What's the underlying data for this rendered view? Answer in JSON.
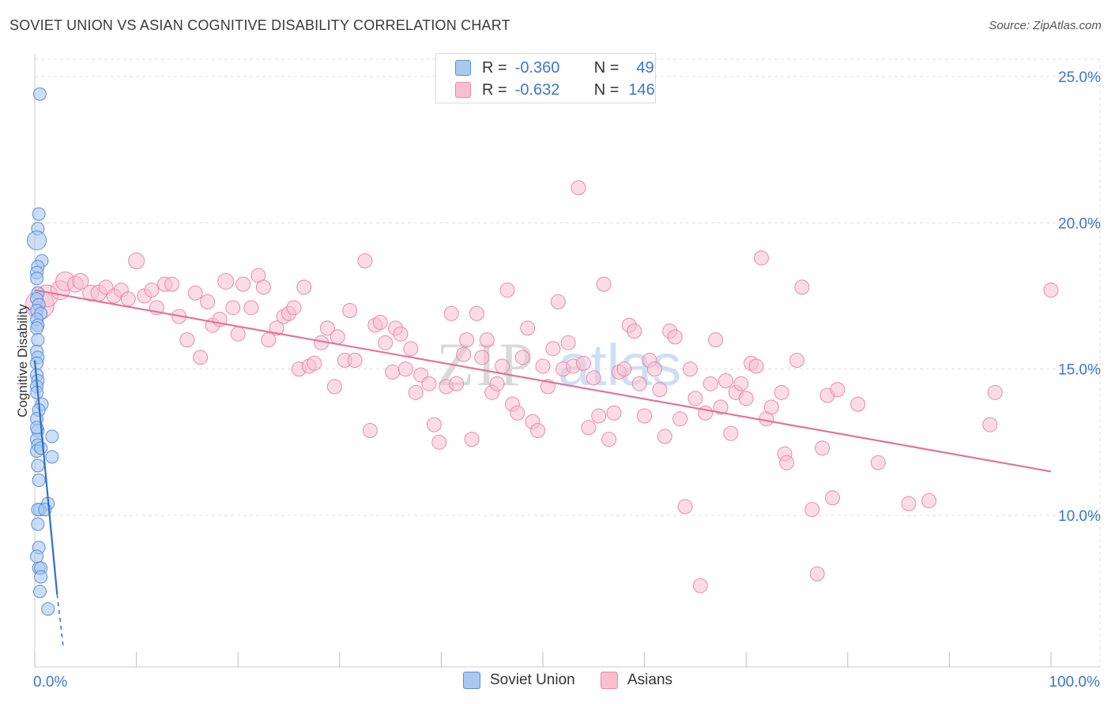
{
  "header": {
    "title": "SOVIET UNION VS ASIAN COGNITIVE DISABILITY CORRELATION CHART",
    "source": "Source: ZipAtlas.com"
  },
  "legend": {
    "r_label": "R =",
    "n_label": "N =",
    "soviet": {
      "r": "-0.360",
      "n": "49"
    },
    "asians": {
      "r": "-0.632",
      "n": "146"
    }
  },
  "watermark": {
    "zip": "ZIP",
    "atlas": "atlas"
  },
  "colors": {
    "soviet_fill": "#a9c8f0",
    "soviet_stroke": "#5a90d6",
    "soviet_line": "#2f6fd0",
    "asians_fill": "#f8bfd1",
    "asians_stroke": "#e88aa8",
    "asians_line": "#e3739a",
    "axis_label": "#3a78c9",
    "grid": "#dddddd"
  },
  "chart_data": {
    "type": "scatter",
    "title": "SOVIET UNION VS ASIAN COGNITIVE DISABILITY CORRELATION CHART",
    "ylabel": "Cognitive Disability",
    "xlabel": "",
    "xlim": [
      0,
      100
    ],
    "ylim": [
      5.5,
      26.3
    ],
    "x_tick_labels": [
      {
        "value": 0,
        "label": "0.0%"
      },
      {
        "value": 100,
        "label": "100.0%"
      }
    ],
    "y_tick_labels": [
      {
        "value": 10,
        "label": "10.0%"
      },
      {
        "value": 15,
        "label": "15.0%"
      },
      {
        "value": 20,
        "label": "20.0%"
      },
      {
        "value": 25,
        "label": "25.0%"
      }
    ],
    "grid": "horizontal dashed",
    "legend_position": "top-center",
    "series": [
      {
        "name": "Soviet Union",
        "r": -0.36,
        "n": 49,
        "trend": {
          "x0": 0,
          "y0": 15.3,
          "x1": 2.2,
          "y1": 7.3,
          "dash_to_x": 2.8,
          "dash_to_y": 5.5
        },
        "points": [
          [
            0.5,
            24.4,
            8
          ],
          [
            0.4,
            20.3,
            8
          ],
          [
            0.3,
            19.8,
            8
          ],
          [
            0.2,
            19.4,
            12
          ],
          [
            0.7,
            18.7,
            8
          ],
          [
            0.3,
            18.5,
            8
          ],
          [
            0.2,
            18.3,
            8
          ],
          [
            0.2,
            18.1,
            8
          ],
          [
            0.3,
            17.6,
            8
          ],
          [
            0.2,
            17.4,
            8
          ],
          [
            0.4,
            17.2,
            8
          ],
          [
            0.2,
            17.0,
            8
          ],
          [
            0.6,
            16.9,
            8
          ],
          [
            0.2,
            16.7,
            8
          ],
          [
            0.3,
            16.5,
            8
          ],
          [
            0.2,
            16.4,
            8
          ],
          [
            0.3,
            16.0,
            8
          ],
          [
            0.2,
            15.6,
            8
          ],
          [
            0.3,
            15.4,
            8
          ],
          [
            0.2,
            15.2,
            8
          ],
          [
            0.2,
            14.8,
            8
          ],
          [
            0.3,
            14.6,
            8
          ],
          [
            0.2,
            14.4,
            8
          ],
          [
            0.2,
            14.2,
            8
          ],
          [
            0.7,
            13.8,
            8
          ],
          [
            0.4,
            13.6,
            8
          ],
          [
            0.2,
            13.3,
            8
          ],
          [
            0.3,
            12.9,
            8
          ],
          [
            0.2,
            12.6,
            8
          ],
          [
            1.7,
            12.7,
            8
          ],
          [
            0.3,
            12.4,
            8
          ],
          [
            0.2,
            12.2,
            8
          ],
          [
            0.6,
            12.3,
            8
          ],
          [
            1.7,
            12.0,
            8
          ],
          [
            0.4,
            11.2,
            8
          ],
          [
            1.3,
            10.4,
            8
          ],
          [
            0.5,
            10.2,
            8
          ],
          [
            0.3,
            10.2,
            8
          ],
          [
            1.0,
            10.2,
            8
          ],
          [
            0.3,
            9.7,
            8
          ],
          [
            0.4,
            8.9,
            8
          ],
          [
            0.4,
            8.2,
            8
          ],
          [
            0.6,
            8.2,
            8
          ],
          [
            0.6,
            7.9,
            8
          ],
          [
            0.5,
            7.4,
            8
          ],
          [
            1.3,
            6.8,
            8
          ],
          [
            0.2,
            8.6,
            8
          ],
          [
            0.3,
            11.7,
            8
          ],
          [
            0.2,
            13.0,
            8
          ]
        ]
      },
      {
        "name": "Asians",
        "r": -0.632,
        "n": 146,
        "trend": {
          "x0": 0,
          "y0": 17.7,
          "x1": 100,
          "y1": 11.5
        },
        "points": [
          [
            0.5,
            17.2,
            18
          ],
          [
            1.2,
            17.5,
            14
          ],
          [
            2.5,
            17.7,
            12
          ],
          [
            3.0,
            18.0,
            12
          ],
          [
            4.0,
            17.9,
            10
          ],
          [
            4.5,
            18.0,
            10
          ],
          [
            5.5,
            17.6,
            10
          ],
          [
            6.3,
            17.6,
            10
          ],
          [
            7.0,
            17.8,
            9
          ],
          [
            7.8,
            17.5,
            9
          ],
          [
            8.5,
            17.7,
            9
          ],
          [
            9.2,
            17.4,
            9
          ],
          [
            10.0,
            18.7,
            10
          ],
          [
            10.8,
            17.5,
            9
          ],
          [
            11.5,
            17.7,
            9
          ],
          [
            12.0,
            17.1,
            9
          ],
          [
            12.8,
            17.9,
            9
          ],
          [
            13.5,
            17.9,
            9
          ],
          [
            14.2,
            16.8,
            9
          ],
          [
            15.0,
            16.0,
            9
          ],
          [
            15.8,
            17.6,
            9
          ],
          [
            16.3,
            15.4,
            9
          ],
          [
            17.0,
            17.3,
            9
          ],
          [
            17.5,
            16.5,
            9
          ],
          [
            18.2,
            16.7,
            9
          ],
          [
            18.8,
            18.0,
            10
          ],
          [
            19.5,
            17.1,
            9
          ],
          [
            20.0,
            16.2,
            9
          ],
          [
            20.5,
            17.9,
            9
          ],
          [
            21.3,
            17.1,
            9
          ],
          [
            22.0,
            18.2,
            9
          ],
          [
            22.5,
            17.8,
            9
          ],
          [
            23.0,
            16.0,
            9
          ],
          [
            23.8,
            16.4,
            9
          ],
          [
            24.5,
            16.8,
            9
          ],
          [
            25.0,
            16.9,
            9
          ],
          [
            25.5,
            17.1,
            9
          ],
          [
            26.0,
            15.0,
            9
          ],
          [
            26.5,
            17.8,
            9
          ],
          [
            27.0,
            15.1,
            9
          ],
          [
            27.5,
            15.2,
            9
          ],
          [
            28.2,
            15.9,
            9
          ],
          [
            28.8,
            16.4,
            9
          ],
          [
            29.5,
            14.4,
            9
          ],
          [
            29.8,
            16.1,
            9
          ],
          [
            30.5,
            15.3,
            9
          ],
          [
            31.0,
            17.0,
            9
          ],
          [
            31.5,
            15.3,
            9
          ],
          [
            32.5,
            18.7,
            9
          ],
          [
            33.0,
            12.9,
            9
          ],
          [
            33.5,
            16.5,
            9
          ],
          [
            34.0,
            16.6,
            9
          ],
          [
            34.5,
            15.9,
            9
          ],
          [
            35.2,
            14.9,
            9
          ],
          [
            35.5,
            16.4,
            9
          ],
          [
            36.0,
            16.2,
            9
          ],
          [
            36.5,
            15.0,
            9
          ],
          [
            37.0,
            15.7,
            9
          ],
          [
            37.5,
            14.2,
            9
          ],
          [
            38.0,
            14.8,
            9
          ],
          [
            38.8,
            14.5,
            9
          ],
          [
            39.3,
            13.1,
            9
          ],
          [
            39.8,
            12.5,
            9
          ],
          [
            40.5,
            14.4,
            9
          ],
          [
            41.0,
            16.9,
            9
          ],
          [
            41.5,
            14.5,
            9
          ],
          [
            42.2,
            15.5,
            9
          ],
          [
            42.5,
            16.0,
            9
          ],
          [
            43.0,
            12.6,
            9
          ],
          [
            43.5,
            16.9,
            9
          ],
          [
            44.0,
            15.4,
            9
          ],
          [
            44.5,
            16.0,
            9
          ],
          [
            45.0,
            14.2,
            9
          ],
          [
            45.5,
            14.5,
            9
          ],
          [
            46.0,
            15.1,
            9
          ],
          [
            46.5,
            17.7,
            9
          ],
          [
            47.0,
            13.8,
            9
          ],
          [
            47.5,
            13.5,
            9
          ],
          [
            48.0,
            15.4,
            9
          ],
          [
            48.5,
            16.4,
            9
          ],
          [
            49.0,
            13.2,
            9
          ],
          [
            49.5,
            12.9,
            9
          ],
          [
            50.0,
            15.1,
            9
          ],
          [
            50.5,
            14.4,
            9
          ],
          [
            51.0,
            15.7,
            9
          ],
          [
            51.5,
            17.3,
            9
          ],
          [
            52.0,
            15.0,
            9
          ],
          [
            52.5,
            15.9,
            9
          ],
          [
            53.0,
            15.1,
            9
          ],
          [
            53.5,
            21.2,
            9
          ],
          [
            54.0,
            15.2,
            9
          ],
          [
            54.5,
            13.0,
            9
          ],
          [
            55.0,
            14.7,
            9
          ],
          [
            55.5,
            13.4,
            9
          ],
          [
            56.0,
            17.9,
            9
          ],
          [
            56.5,
            12.6,
            9
          ],
          [
            57.0,
            13.5,
            9
          ],
          [
            57.5,
            14.9,
            9
          ],
          [
            58.0,
            15.0,
            9
          ],
          [
            58.5,
            16.5,
            9
          ],
          [
            59.0,
            16.3,
            9
          ],
          [
            59.5,
            14.5,
            9
          ],
          [
            60.0,
            13.4,
            9
          ],
          [
            60.5,
            15.3,
            9
          ],
          [
            61.0,
            15.0,
            9
          ],
          [
            61.5,
            14.3,
            9
          ],
          [
            62.0,
            12.7,
            9
          ],
          [
            62.5,
            16.3,
            9
          ],
          [
            63.0,
            16.1,
            9
          ],
          [
            63.5,
            13.3,
            9
          ],
          [
            64.0,
            10.3,
            9
          ],
          [
            64.5,
            15.0,
            9
          ],
          [
            65.0,
            14.0,
            9
          ],
          [
            65.5,
            7.6,
            9
          ],
          [
            66.0,
            13.5,
            9
          ],
          [
            66.5,
            14.5,
            9
          ],
          [
            67.0,
            16.0,
            9
          ],
          [
            67.5,
            13.7,
            9
          ],
          [
            68.0,
            14.6,
            9
          ],
          [
            68.5,
            12.8,
            9
          ],
          [
            69.0,
            14.2,
            9
          ],
          [
            69.5,
            14.5,
            9
          ],
          [
            70.0,
            14.0,
            9
          ],
          [
            70.5,
            15.2,
            9
          ],
          [
            71.0,
            15.1,
            9
          ],
          [
            71.5,
            18.8,
            9
          ],
          [
            72.0,
            13.3,
            9
          ],
          [
            72.5,
            13.7,
            9
          ],
          [
            73.5,
            14.2,
            9
          ],
          [
            73.8,
            12.1,
            9
          ],
          [
            74.0,
            11.8,
            9
          ],
          [
            75.0,
            15.3,
            9
          ],
          [
            75.5,
            17.8,
            9
          ],
          [
            76.5,
            10.2,
            9
          ],
          [
            77.0,
            8.0,
            9
          ],
          [
            77.5,
            12.3,
            9
          ],
          [
            78.0,
            14.1,
            9
          ],
          [
            78.5,
            10.6,
            9
          ],
          [
            79.0,
            14.3,
            9
          ],
          [
            81.0,
            13.8,
            9
          ],
          [
            83.0,
            11.8,
            9
          ],
          [
            86.0,
            10.4,
            9
          ],
          [
            88.0,
            10.5,
            9
          ],
          [
            94.0,
            13.1,
            9
          ],
          [
            94.5,
            14.2,
            9
          ],
          [
            100.0,
            17.7,
            9
          ]
        ]
      }
    ]
  }
}
